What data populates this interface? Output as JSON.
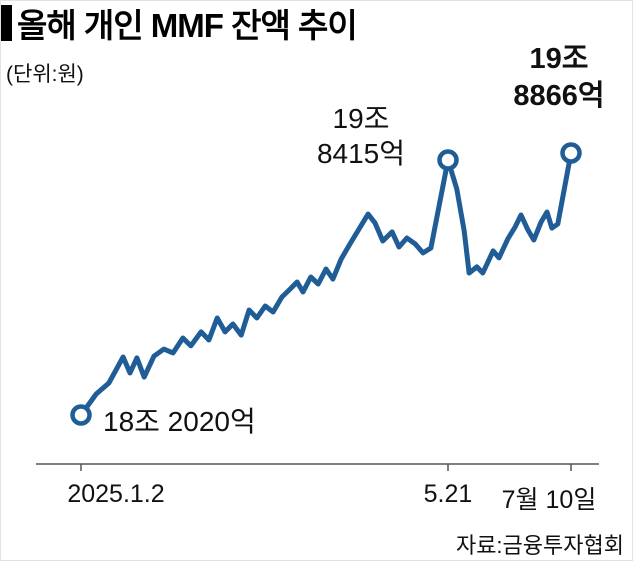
{
  "header": {
    "title": "올해 개인 MMF 잔액 추이",
    "unit": "(단위:원)"
  },
  "source": "자료:금융투자협회",
  "chart_data": {
    "type": "line",
    "title": "올해 개인 MMF 잔액 추이",
    "unit_label": "(단위:원)",
    "value_unit": "조 원",
    "line_color": "#205d97",
    "axis_color": "#555555",
    "ylim": [
      18.202,
      19.8866
    ],
    "x_ticks": [
      {
        "pos": 0.0,
        "label": "2025.1.2"
      },
      {
        "pos": 0.749,
        "label": "5.21"
      },
      {
        "pos": 1.0,
        "label": "7월 10일"
      }
    ],
    "points": [
      [
        0.0,
        18.202
      ],
      [
        0.031,
        18.337
      ],
      [
        0.057,
        18.408
      ],
      [
        0.086,
        18.575
      ],
      [
        0.1,
        18.472
      ],
      [
        0.114,
        18.569
      ],
      [
        0.129,
        18.446
      ],
      [
        0.149,
        18.581
      ],
      [
        0.169,
        18.626
      ],
      [
        0.188,
        18.601
      ],
      [
        0.208,
        18.697
      ],
      [
        0.224,
        18.646
      ],
      [
        0.245,
        18.736
      ],
      [
        0.261,
        18.684
      ],
      [
        0.278,
        18.826
      ],
      [
        0.294,
        18.736
      ],
      [
        0.31,
        18.787
      ],
      [
        0.327,
        18.716
      ],
      [
        0.343,
        18.877
      ],
      [
        0.359,
        18.826
      ],
      [
        0.376,
        18.903
      ],
      [
        0.392,
        18.864
      ],
      [
        0.41,
        18.961
      ],
      [
        0.427,
        19.012
      ],
      [
        0.441,
        19.057
      ],
      [
        0.453,
        18.993
      ],
      [
        0.469,
        19.089
      ],
      [
        0.484,
        19.044
      ],
      [
        0.5,
        19.141
      ],
      [
        0.514,
        19.076
      ],
      [
        0.531,
        19.205
      ],
      [
        0.549,
        19.302
      ],
      [
        0.565,
        19.385
      ],
      [
        0.586,
        19.494
      ],
      [
        0.6,
        19.437
      ],
      [
        0.616,
        19.321
      ],
      [
        0.635,
        19.379
      ],
      [
        0.649,
        19.282
      ],
      [
        0.665,
        19.34
      ],
      [
        0.682,
        19.302
      ],
      [
        0.698,
        19.244
      ],
      [
        0.714,
        19.276
      ],
      [
        0.749,
        19.8415
      ],
      [
        0.767,
        19.655
      ],
      [
        0.782,
        19.385
      ],
      [
        0.792,
        19.115
      ],
      [
        0.808,
        19.154
      ],
      [
        0.82,
        19.115
      ],
      [
        0.841,
        19.257
      ],
      [
        0.853,
        19.212
      ],
      [
        0.871,
        19.334
      ],
      [
        0.886,
        19.411
      ],
      [
        0.898,
        19.488
      ],
      [
        0.912,
        19.392
      ],
      [
        0.924,
        19.327
      ],
      [
        0.939,
        19.443
      ],
      [
        0.951,
        19.507
      ],
      [
        0.961,
        19.404
      ],
      [
        0.973,
        19.43
      ],
      [
        1.0,
        19.8866
      ]
    ],
    "markers": [
      {
        "pos": 0.0,
        "value": 18.202,
        "label": "18조 2020억",
        "bold": false
      },
      {
        "pos": 0.749,
        "value": 19.8415,
        "label": "19조 8415억",
        "bold": false
      },
      {
        "pos": 1.0,
        "value": 19.8866,
        "label": "19조 8866억",
        "bold": true
      }
    ],
    "annotations": {
      "start": "18조 2020억",
      "peak_line1": "19조",
      "peak_line2": "8415억",
      "end_line1": "19조",
      "end_line2": "8866억"
    }
  }
}
